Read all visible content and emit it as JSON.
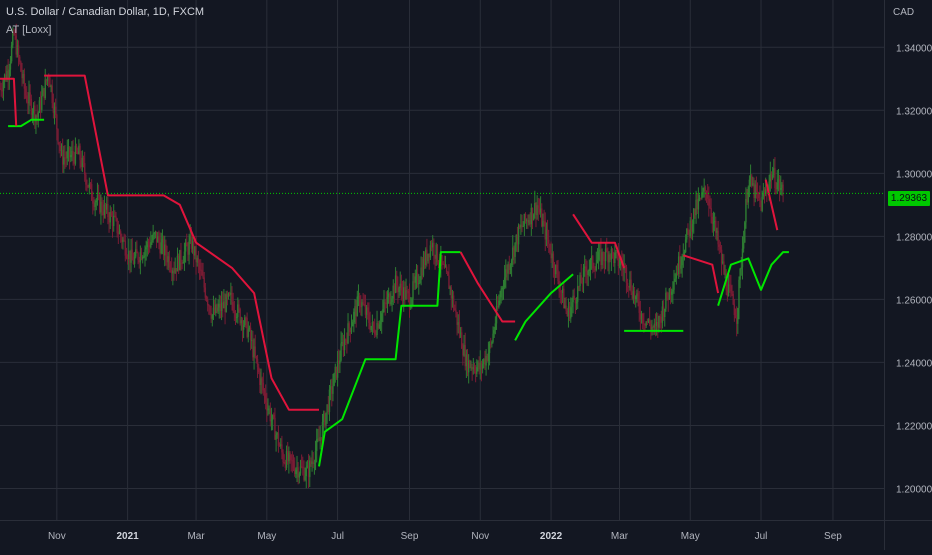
{
  "header": {
    "title": "U.S. Dollar / Canadian Dollar, 1D, FXCM",
    "indicator": "AT [Loxx]",
    "currency": "CAD"
  },
  "price_label": "1.29363",
  "colors": {
    "background": "#131722",
    "grid": "#2a2e39",
    "bull": "#2e7d32",
    "bear": "#7b1c34",
    "trail_up": "#00e600",
    "trail_down": "#e0143c",
    "price_line": "#00c800"
  },
  "chart_data": {
    "type": "candlestick",
    "title": "U.S. Dollar / Canadian Dollar, 1D, FXCM",
    "ylim": [
      1.19,
      1.355
    ],
    "y_ticks": [
      "1.34000",
      "1.32000",
      "1.30000",
      "1.28000",
      "1.26000",
      "1.24000",
      "1.22000",
      "1.20000"
    ],
    "y_tick_values": [
      1.34,
      1.32,
      1.3,
      1.28,
      1.26,
      1.24,
      1.22,
      1.2
    ],
    "x_ticks": [
      "Nov",
      "2021",
      "Mar",
      "May",
      "Jul",
      "Sep",
      "Nov",
      "2022",
      "Mar",
      "May",
      "Jul",
      "Sep"
    ],
    "x_range": [
      "2020-09-13",
      "2022-10-15"
    ],
    "x_tick_dates": [
      "2020-11-01",
      "2021-01-01",
      "2021-03-01",
      "2021-05-01",
      "2021-07-01",
      "2021-09-01",
      "2021-11-01",
      "2022-01-01",
      "2022-03-01",
      "2022-05-01",
      "2022-07-01",
      "2022-09-01"
    ],
    "current_price": 1.29363,
    "price_path": [
      [
        "2020-09-13",
        1.327
      ],
      [
        "2020-09-20",
        1.333
      ],
      [
        "2020-09-25",
        1.344
      ],
      [
        "2020-10-05",
        1.325
      ],
      [
        "2020-10-15",
        1.318
      ],
      [
        "2020-10-25",
        1.332
      ],
      [
        "2020-11-05",
        1.305
      ],
      [
        "2020-11-20",
        1.306
      ],
      [
        "2020-12-01",
        1.293
      ],
      [
        "2020-12-20",
        1.285
      ],
      [
        "2021-01-05",
        1.272
      ],
      [
        "2021-01-25",
        1.28
      ],
      [
        "2021-02-10",
        1.27
      ],
      [
        "2021-02-25",
        1.278
      ],
      [
        "2021-03-15",
        1.255
      ],
      [
        "2021-03-31",
        1.26
      ],
      [
        "2021-04-15",
        1.25
      ],
      [
        "2021-04-25",
        1.235
      ],
      [
        "2021-05-05",
        1.222
      ],
      [
        "2021-05-15",
        1.21
      ],
      [
        "2021-05-25",
        1.207
      ],
      [
        "2021-06-05",
        1.205
      ],
      [
        "2021-06-15",
        1.215
      ],
      [
        "2021-06-25",
        1.23
      ],
      [
        "2021-07-05",
        1.245
      ],
      [
        "2021-07-20",
        1.26
      ],
      [
        "2021-08-01",
        1.25
      ],
      [
        "2021-08-20",
        1.265
      ],
      [
        "2021-09-01",
        1.26
      ],
      [
        "2021-09-20",
        1.278
      ],
      [
        "2021-10-05",
        1.265
      ],
      [
        "2021-10-20",
        1.24
      ],
      [
        "2021-11-01",
        1.238
      ],
      [
        "2021-11-10",
        1.245
      ],
      [
        "2021-11-20",
        1.265
      ],
      [
        "2021-12-05",
        1.282
      ],
      [
        "2021-12-20",
        1.29
      ],
      [
        "2022-01-01",
        1.275
      ],
      [
        "2022-01-15",
        1.255
      ],
      [
        "2022-02-01",
        1.27
      ],
      [
        "2022-02-20",
        1.275
      ],
      [
        "2022-03-05",
        1.27
      ],
      [
        "2022-03-20",
        1.255
      ],
      [
        "2022-04-01",
        1.25
      ],
      [
        "2022-04-20",
        1.27
      ],
      [
        "2022-05-05",
        1.288
      ],
      [
        "2022-05-15",
        1.295
      ],
      [
        "2022-06-01",
        1.265
      ],
      [
        "2022-06-10",
        1.255
      ],
      [
        "2022-06-20",
        1.298
      ],
      [
        "2022-07-01",
        1.29
      ],
      [
        "2022-07-10",
        1.3
      ],
      [
        "2022-07-20",
        1.294
      ]
    ],
    "series": [
      {
        "name": "",
        "role": "trail_up",
        "points": [
          [
            "2020-09-20",
            1.315
          ],
          [
            "2020-10-01",
            1.315
          ],
          [
            "2020-10-10",
            1.317
          ],
          [
            "2020-10-21",
            1.317
          ]
        ]
      },
      {
        "name": "",
        "role": "trail_down",
        "points": [
          [
            "2020-09-13",
            1.33
          ],
          [
            "2020-09-25",
            1.33
          ],
          [
            "2020-09-27",
            1.315
          ]
        ]
      },
      {
        "name": "",
        "role": "trail_down",
        "points": [
          [
            "2020-10-21",
            1.331
          ],
          [
            "2020-11-25",
            1.331
          ],
          [
            "2020-12-15",
            1.293
          ],
          [
            "2021-02-01",
            1.293
          ],
          [
            "2021-02-15",
            1.29
          ],
          [
            "2021-03-01",
            1.278
          ],
          [
            "2021-04-01",
            1.27
          ],
          [
            "2021-04-20",
            1.262
          ],
          [
            "2021-05-05",
            1.235
          ],
          [
            "2021-05-20",
            1.225
          ],
          [
            "2021-06-15",
            1.225
          ]
        ]
      },
      {
        "name": "",
        "role": "trail_up",
        "points": [
          [
            "2021-06-15",
            1.207
          ],
          [
            "2021-06-20",
            1.218
          ],
          [
            "2021-07-05",
            1.222
          ],
          [
            "2021-07-25",
            1.241
          ],
          [
            "2021-08-20",
            1.241
          ],
          [
            "2021-08-25",
            1.258
          ],
          [
            "2021-09-25",
            1.258
          ],
          [
            "2021-09-28",
            1.275
          ],
          [
            "2021-10-15",
            1.275
          ]
        ]
      },
      {
        "name": "",
        "role": "trail_down",
        "points": [
          [
            "2021-10-15",
            1.275
          ],
          [
            "2021-10-30",
            1.265
          ],
          [
            "2021-11-20",
            1.253
          ],
          [
            "2021-12-01",
            1.253
          ]
        ]
      },
      {
        "name": "",
        "role": "trail_up",
        "points": [
          [
            "2021-12-01",
            1.247
          ],
          [
            "2021-12-10",
            1.253
          ],
          [
            "2022-01-01",
            1.262
          ],
          [
            "2022-01-20",
            1.268
          ]
        ]
      },
      {
        "name": "",
        "role": "trail_down",
        "points": [
          [
            "2022-01-20",
            1.287
          ],
          [
            "2022-02-05",
            1.278
          ],
          [
            "2022-02-25",
            1.278
          ],
          [
            "2022-03-05",
            1.27
          ]
        ]
      },
      {
        "name": "",
        "role": "trail_up",
        "points": [
          [
            "2022-03-05",
            1.25
          ],
          [
            "2022-04-25",
            1.25
          ]
        ]
      },
      {
        "name": "",
        "role": "trail_down",
        "points": [
          [
            "2022-04-25",
            1.274
          ],
          [
            "2022-05-20",
            1.271
          ],
          [
            "2022-05-25",
            1.262
          ]
        ]
      },
      {
        "name": "",
        "role": "trail_up",
        "points": [
          [
            "2022-05-25",
            1.258
          ],
          [
            "2022-06-05",
            1.271
          ],
          [
            "2022-06-20",
            1.273
          ],
          [
            "2022-07-01",
            1.263
          ],
          [
            "2022-07-10",
            1.271
          ],
          [
            "2022-07-20",
            1.275
          ],
          [
            "2022-07-25",
            1.275
          ]
        ]
      },
      {
        "name": "",
        "role": "trail_down",
        "points": [
          [
            "2022-07-05",
            1.298
          ],
          [
            "2022-07-15",
            1.282
          ]
        ]
      }
    ]
  }
}
